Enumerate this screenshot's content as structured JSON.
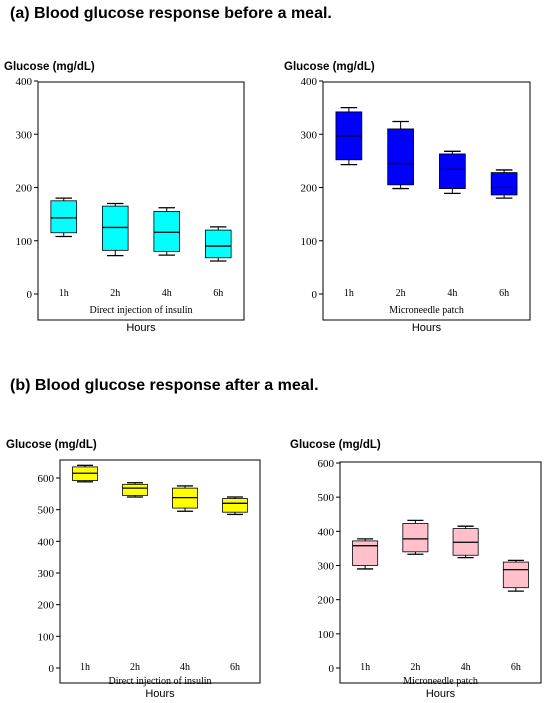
{
  "section_a_title": "(a)  Blood glucose response before a meal.",
  "section_b_title": "(b) Blood glucose response after a meal.",
  "colors": {
    "cyan": "#00ffff",
    "blue": "#0000ff",
    "yellow": "#ffff00",
    "pink": "#ffc0cb"
  },
  "chart_data": [
    {
      "type": "box",
      "ylabel": "Glucose (mg/dL)",
      "xlabel": "Hours",
      "inner_label": "Direct injection of insulin",
      "ylim": [
        0,
        400
      ],
      "yticks": [
        "0",
        "100",
        "200",
        "300",
        "400"
      ],
      "categories": [
        "1h",
        "2h",
        "4h",
        "6h"
      ],
      "fill": "#00ffff",
      "boxes": [
        {
          "min": 108,
          "q1": 115,
          "median": 143,
          "q3": 175,
          "max": 180
        },
        {
          "min": 72,
          "q1": 82,
          "median": 125,
          "q3": 165,
          "max": 170
        },
        {
          "min": 73,
          "q1": 80,
          "median": 116,
          "q3": 155,
          "max": 162
        },
        {
          "min": 62,
          "q1": 68,
          "median": 90,
          "q3": 120,
          "max": 126
        }
      ]
    },
    {
      "type": "box",
      "ylabel": "Glucose (mg/dL)",
      "xlabel": "Hours",
      "inner_label": "Microneedle patch",
      "ylim": [
        0,
        400
      ],
      "yticks": [
        "0",
        "100",
        "200",
        "300",
        "400"
      ],
      "categories": [
        "1h",
        "2h",
        "4h",
        "6h"
      ],
      "fill": "#0000ff",
      "boxes": [
        {
          "min": 243,
          "q1": 252,
          "median": 297,
          "q3": 342,
          "max": 350
        },
        {
          "min": 198,
          "q1": 205,
          "median": 245,
          "q3": 310,
          "max": 324
        },
        {
          "min": 189,
          "q1": 198,
          "median": 234,
          "q3": 263,
          "max": 268
        },
        {
          "min": 180,
          "q1": 186,
          "median": 200,
          "q3": 228,
          "max": 233
        }
      ]
    },
    {
      "type": "box",
      "ylabel": "Glucose (mg/dL)",
      "xlabel": "Hours",
      "inner_label": "Direct injection of insulin",
      "ylim": [
        0,
        700
      ],
      "yticks": [
        "0",
        "100",
        "200",
        "300",
        "400",
        "500",
        "600"
      ],
      "categories": [
        "1h",
        "2h",
        "4h",
        "6h"
      ],
      "fill": "#ffff00",
      "boxes": [
        {
          "min": 588,
          "q1": 592,
          "median": 615,
          "q3": 635,
          "max": 640
        },
        {
          "min": 540,
          "q1": 545,
          "median": 568,
          "q3": 580,
          "max": 585
        },
        {
          "min": 495,
          "q1": 505,
          "median": 538,
          "q3": 568,
          "max": 575
        },
        {
          "min": 485,
          "q1": 492,
          "median": 520,
          "q3": 535,
          "max": 540
        }
      ]
    },
    {
      "type": "box",
      "ylabel": "Glucose (mg/dL)",
      "xlabel": "Hours",
      "inner_label": "Microneedle patch",
      "ylim": [
        0,
        600
      ],
      "yticks": [
        "0",
        "100",
        "200",
        "300",
        "400",
        "500",
        "600"
      ],
      "categories": [
        "1h",
        "2h",
        "4h",
        "6h"
      ],
      "fill": "#ffc0cb",
      "boxes": [
        {
          "min": 290,
          "q1": 300,
          "median": 358,
          "q3": 372,
          "max": 378
        },
        {
          "min": 333,
          "q1": 340,
          "median": 378,
          "q3": 423,
          "max": 432
        },
        {
          "min": 323,
          "q1": 330,
          "median": 368,
          "q3": 408,
          "max": 415
        },
        {
          "min": 225,
          "q1": 235,
          "median": 288,
          "q3": 310,
          "max": 315
        }
      ]
    }
  ]
}
